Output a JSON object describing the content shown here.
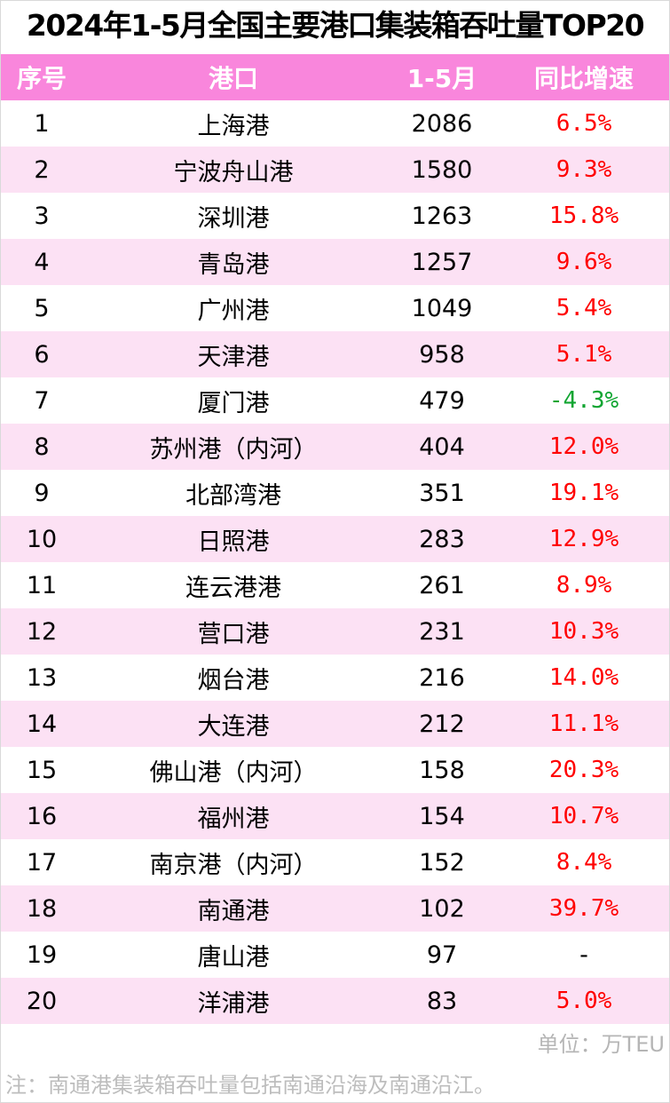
{
  "title": "2024年1-5月全国主要港口集装箱吞吐量TOP20",
  "header": {
    "rank": "序号",
    "port": "港口",
    "volume": "1-5月",
    "growth": "同比增速"
  },
  "colors": {
    "header_bg": "#f986dc",
    "stripe": "#fce1f4",
    "positive": "#ff0000",
    "negative": "#11a532"
  },
  "rows": [
    {
      "rank": "1",
      "port": "上海港",
      "volume": "2086",
      "growth": "6.5%"
    },
    {
      "rank": "2",
      "port": "宁波舟山港",
      "volume": "1580",
      "growth": "9.3%"
    },
    {
      "rank": "3",
      "port": "深圳港",
      "volume": "1263",
      "growth": "15.8%"
    },
    {
      "rank": "4",
      "port": "青岛港",
      "volume": "1257",
      "growth": "9.6%"
    },
    {
      "rank": "5",
      "port": "广州港",
      "volume": "1049",
      "growth": "5.4%"
    },
    {
      "rank": "6",
      "port": "天津港",
      "volume": "958",
      "growth": "5.1%"
    },
    {
      "rank": "7",
      "port": "厦门港",
      "volume": "479",
      "growth": "-4.3%"
    },
    {
      "rank": "8",
      "port": "苏州港（内河）",
      "volume": "404",
      "growth": "12.0%"
    },
    {
      "rank": "9",
      "port": "北部湾港",
      "volume": "351",
      "growth": "19.1%"
    },
    {
      "rank": "10",
      "port": "日照港",
      "volume": "283",
      "growth": "12.9%"
    },
    {
      "rank": "11",
      "port": "连云港港",
      "volume": "261",
      "growth": "8.9%"
    },
    {
      "rank": "12",
      "port": "营口港",
      "volume": "231",
      "growth": "10.3%"
    },
    {
      "rank": "13",
      "port": "烟台港",
      "volume": "216",
      "growth": "14.0%"
    },
    {
      "rank": "14",
      "port": "大连港",
      "volume": "212",
      "growth": "11.1%"
    },
    {
      "rank": "15",
      "port": "佛山港（内河）",
      "volume": "158",
      "growth": "20.3%"
    },
    {
      "rank": "16",
      "port": "福州港",
      "volume": "154",
      "growth": "10.7%"
    },
    {
      "rank": "17",
      "port": "南京港（内河）",
      "volume": "152",
      "growth": "8.4%"
    },
    {
      "rank": "18",
      "port": "南通港",
      "volume": "102",
      "growth": "39.7%"
    },
    {
      "rank": "19",
      "port": "唐山港",
      "volume": "97",
      "growth": "-"
    },
    {
      "rank": "20",
      "port": "洋浦港",
      "volume": "83",
      "growth": "5.0%"
    }
  ],
  "unit": "单位：万TEU",
  "note": "注：南通港集装箱吞吐量包括南通沿海及南通沿江。"
}
